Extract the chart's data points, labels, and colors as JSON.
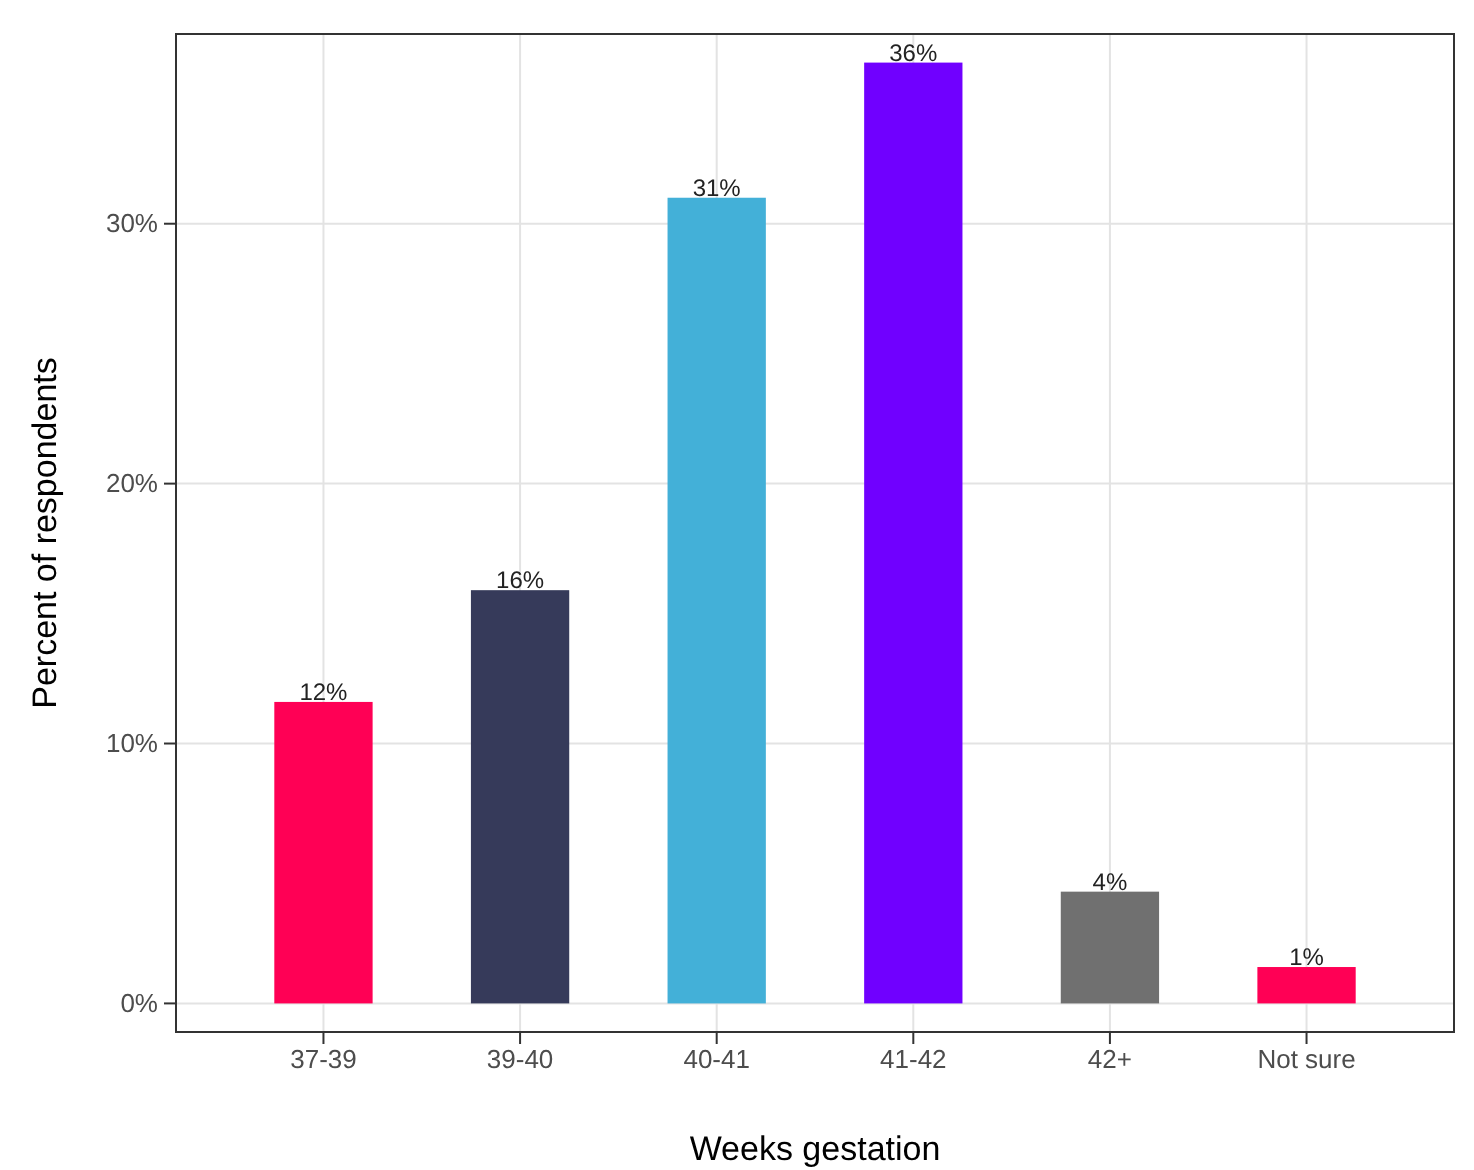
{
  "chart_data": {
    "type": "bar",
    "xlabel": "Weeks gestation",
    "ylabel": "Percent of respondents",
    "categories": [
      "37-39",
      "39-40",
      "40-41",
      "41-42",
      "42+",
      "Not sure"
    ],
    "values": [
      11.6,
      15.9,
      31.0,
      36.2,
      4.3,
      1.4
    ],
    "colors": [
      "#ff0055",
      "#363a5a",
      "#43b0d8",
      "#7000ff",
      "#707070",
      "#ff0055"
    ],
    "value_labels": [
      "12%",
      "16%",
      "31%",
      "36%",
      "4%",
      "1%"
    ],
    "ylim": [
      -1.1,
      37.3
    ],
    "yticks": [
      {
        "value": 0,
        "label": "0%"
      },
      {
        "value": 10,
        "label": "10%"
      },
      {
        "value": 20,
        "label": "20%"
      },
      {
        "value": 30,
        "label": "30%"
      }
    ],
    "grid": true
  }
}
